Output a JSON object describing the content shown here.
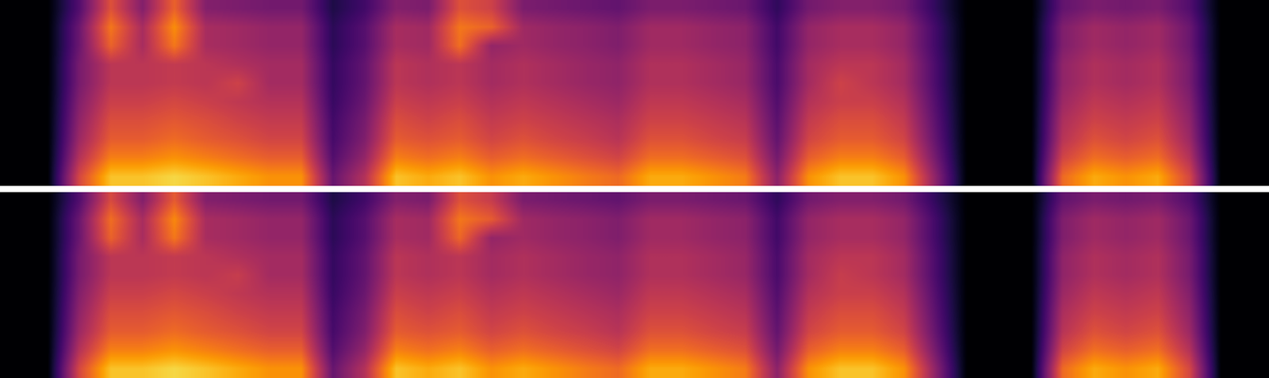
{
  "chart_data": [
    {
      "type": "heatmap",
      "color": "inferno",
      "tick_labels": false,
      "value_range": [
        0,
        1
      ],
      "cells": [
        [
          0,
          0,
          0.24,
          0.6,
          0.36,
          0.65,
          0.36,
          0.34,
          0.32,
          0.32,
          0.12,
          0.2,
          0.36,
          0.34,
          0.6,
          0.55,
          0.34,
          0.32,
          0.3,
          0.28,
          0.34,
          0.34,
          0.32,
          0.3,
          0.16,
          0.32,
          0.36,
          0.36,
          0.32,
          0.16,
          0,
          0,
          0,
          0.28,
          0.34,
          0.32,
          0.34,
          0.24,
          0,
          0
        ],
        [
          0,
          0,
          0.3,
          0.7,
          0.45,
          0.75,
          0.45,
          0.43,
          0.4,
          0.4,
          0.15,
          0.25,
          0.45,
          0.43,
          0.7,
          0.65,
          0.43,
          0.4,
          0.38,
          0.35,
          0.43,
          0.43,
          0.4,
          0.38,
          0.2,
          0.4,
          0.45,
          0.45,
          0.4,
          0.2,
          0,
          0,
          0,
          0.35,
          0.43,
          0.4,
          0.43,
          0.3,
          0,
          0
        ],
        [
          0,
          0,
          0.3,
          0.65,
          0.45,
          0.7,
          0.45,
          0.43,
          0.4,
          0.4,
          0.15,
          0.25,
          0.45,
          0.43,
          0.68,
          0.4,
          0.43,
          0.4,
          0.38,
          0.35,
          0.43,
          0.43,
          0.4,
          0.38,
          0.2,
          0.4,
          0.45,
          0.45,
          0.4,
          0.2,
          0,
          0,
          0,
          0.35,
          0.43,
          0.4,
          0.43,
          0.3,
          0,
          0
        ],
        [
          0,
          0,
          0.33,
          0.5,
          0.5,
          0.52,
          0.5,
          0.47,
          0.44,
          0.44,
          0.17,
          0.28,
          0.5,
          0.47,
          0.5,
          0.44,
          0.47,
          0.44,
          0.41,
          0.39,
          0.47,
          0.47,
          0.44,
          0.41,
          0.22,
          0.44,
          0.5,
          0.5,
          0.44,
          0.22,
          0,
          0,
          0,
          0.39,
          0.47,
          0.44,
          0.47,
          0.33,
          0,
          0
        ],
        [
          0,
          0,
          0.33,
          0.5,
          0.5,
          0.52,
          0.5,
          0.55,
          0.44,
          0.44,
          0.17,
          0.28,
          0.5,
          0.47,
          0.5,
          0.44,
          0.47,
          0.44,
          0.41,
          0.39,
          0.47,
          0.47,
          0.44,
          0.41,
          0.22,
          0.44,
          0.55,
          0.5,
          0.44,
          0.22,
          0,
          0,
          0,
          0.39,
          0.47,
          0.44,
          0.47,
          0.33,
          0,
          0
        ],
        [
          0,
          0,
          0.36,
          0.54,
          0.54,
          0.57,
          0.54,
          0.51,
          0.48,
          0.48,
          0.18,
          0.3,
          0.54,
          0.51,
          0.54,
          0.48,
          0.51,
          0.48,
          0.45,
          0.42,
          0.51,
          0.51,
          0.48,
          0.45,
          0.24,
          0.48,
          0.54,
          0.54,
          0.48,
          0.24,
          0,
          0,
          0,
          0.42,
          0.51,
          0.48,
          0.51,
          0.36,
          0,
          0
        ],
        [
          0,
          0,
          0.39,
          0.59,
          0.59,
          0.62,
          0.59,
          0.55,
          0.52,
          0.52,
          0.2,
          0.33,
          0.59,
          0.55,
          0.59,
          0.52,
          0.55,
          0.52,
          0.49,
          0.46,
          0.55,
          0.55,
          0.52,
          0.49,
          0.26,
          0.52,
          0.59,
          0.59,
          0.52,
          0.26,
          0,
          0,
          0,
          0.46,
          0.55,
          0.52,
          0.55,
          0.39,
          0,
          0
        ],
        [
          0,
          0,
          0.42,
          0.63,
          0.63,
          0.67,
          0.63,
          0.6,
          0.56,
          0.56,
          0.21,
          0.35,
          0.63,
          0.6,
          0.63,
          0.56,
          0.6,
          0.56,
          0.53,
          0.49,
          0.6,
          0.6,
          0.56,
          0.53,
          0.28,
          0.56,
          0.63,
          0.63,
          0.56,
          0.28,
          0,
          0,
          0,
          0.49,
          0.6,
          0.56,
          0.6,
          0.42,
          0,
          0
        ],
        [
          0,
          0,
          0.48,
          0.72,
          0.72,
          0.76,
          0.72,
          0.68,
          0.64,
          0.64,
          0.24,
          0.4,
          0.72,
          0.68,
          0.72,
          0.64,
          0.68,
          0.64,
          0.6,
          0.56,
          0.68,
          0.68,
          0.64,
          0.6,
          0.32,
          0.64,
          0.72,
          0.72,
          0.64,
          0.32,
          0,
          0,
          0,
          0.56,
          0.68,
          0.64,
          0.68,
          0.48,
          0,
          0
        ],
        [
          0,
          0,
          0.57,
          0.86,
          0.86,
          0.9,
          0.86,
          0.81,
          0.76,
          0.76,
          0.29,
          0.48,
          0.86,
          0.81,
          0.86,
          0.76,
          0.81,
          0.76,
          0.71,
          0.67,
          0.81,
          0.81,
          0.76,
          0.71,
          0.38,
          0.76,
          0.86,
          0.86,
          0.76,
          0.38,
          0,
          0,
          0,
          0.67,
          0.81,
          0.76,
          0.81,
          0.57,
          0,
          0
        ]
      ]
    },
    {
      "type": "heatmap",
      "color": "inferno",
      "tick_labels": false,
      "value_range": [
        0,
        1
      ],
      "cells": [
        [
          0,
          0,
          0.24,
          0.58,
          0.36,
          0.63,
          0.36,
          0.34,
          0.32,
          0.32,
          0.12,
          0.2,
          0.36,
          0.34,
          0.6,
          0.53,
          0.34,
          0.32,
          0.3,
          0.28,
          0.34,
          0.34,
          0.32,
          0.3,
          0.16,
          0.32,
          0.36,
          0.36,
          0.32,
          0.16,
          0,
          0,
          0,
          0.28,
          0.34,
          0.32,
          0.34,
          0.24,
          0,
          0
        ],
        [
          0,
          0,
          0.3,
          0.68,
          0.45,
          0.74,
          0.45,
          0.43,
          0.4,
          0.4,
          0.15,
          0.25,
          0.45,
          0.43,
          0.7,
          0.63,
          0.43,
          0.4,
          0.38,
          0.35,
          0.43,
          0.43,
          0.4,
          0.38,
          0.2,
          0.4,
          0.45,
          0.45,
          0.4,
          0.2,
          0,
          0,
          0,
          0.35,
          0.43,
          0.4,
          0.43,
          0.3,
          0,
          0
        ],
        [
          0,
          0,
          0.3,
          0.65,
          0.45,
          0.7,
          0.45,
          0.43,
          0.4,
          0.4,
          0.15,
          0.25,
          0.45,
          0.43,
          0.66,
          0.4,
          0.43,
          0.4,
          0.38,
          0.35,
          0.43,
          0.43,
          0.4,
          0.38,
          0.2,
          0.4,
          0.45,
          0.45,
          0.4,
          0.2,
          0,
          0,
          0,
          0.35,
          0.43,
          0.4,
          0.43,
          0.3,
          0,
          0
        ],
        [
          0,
          0,
          0.33,
          0.5,
          0.5,
          0.52,
          0.5,
          0.47,
          0.44,
          0.44,
          0.17,
          0.28,
          0.5,
          0.47,
          0.5,
          0.44,
          0.47,
          0.44,
          0.41,
          0.39,
          0.47,
          0.47,
          0.44,
          0.41,
          0.22,
          0.44,
          0.5,
          0.5,
          0.44,
          0.22,
          0,
          0,
          0,
          0.39,
          0.47,
          0.44,
          0.47,
          0.33,
          0,
          0
        ],
        [
          0,
          0,
          0.33,
          0.5,
          0.5,
          0.52,
          0.5,
          0.53,
          0.44,
          0.44,
          0.17,
          0.28,
          0.5,
          0.47,
          0.5,
          0.44,
          0.47,
          0.44,
          0.41,
          0.39,
          0.47,
          0.47,
          0.44,
          0.41,
          0.22,
          0.44,
          0.53,
          0.5,
          0.44,
          0.22,
          0,
          0,
          0,
          0.39,
          0.47,
          0.44,
          0.47,
          0.33,
          0,
          0
        ],
        [
          0,
          0,
          0.36,
          0.54,
          0.54,
          0.57,
          0.54,
          0.51,
          0.48,
          0.48,
          0.18,
          0.3,
          0.54,
          0.51,
          0.54,
          0.48,
          0.51,
          0.48,
          0.45,
          0.42,
          0.51,
          0.51,
          0.48,
          0.45,
          0.24,
          0.48,
          0.54,
          0.54,
          0.48,
          0.24,
          0,
          0,
          0,
          0.42,
          0.51,
          0.48,
          0.51,
          0.36,
          0,
          0
        ],
        [
          0,
          0,
          0.39,
          0.59,
          0.59,
          0.62,
          0.59,
          0.55,
          0.52,
          0.52,
          0.2,
          0.33,
          0.59,
          0.55,
          0.59,
          0.52,
          0.55,
          0.52,
          0.49,
          0.46,
          0.55,
          0.55,
          0.52,
          0.49,
          0.26,
          0.52,
          0.59,
          0.59,
          0.52,
          0.26,
          0,
          0,
          0,
          0.46,
          0.55,
          0.52,
          0.55,
          0.39,
          0,
          0
        ],
        [
          0,
          0,
          0.42,
          0.63,
          0.63,
          0.67,
          0.63,
          0.6,
          0.56,
          0.56,
          0.21,
          0.35,
          0.63,
          0.6,
          0.63,
          0.56,
          0.6,
          0.56,
          0.53,
          0.49,
          0.6,
          0.6,
          0.56,
          0.53,
          0.28,
          0.56,
          0.63,
          0.63,
          0.56,
          0.28,
          0,
          0,
          0,
          0.49,
          0.6,
          0.56,
          0.6,
          0.42,
          0,
          0
        ],
        [
          0,
          0,
          0.48,
          0.72,
          0.72,
          0.76,
          0.72,
          0.68,
          0.64,
          0.64,
          0.24,
          0.4,
          0.72,
          0.68,
          0.72,
          0.64,
          0.68,
          0.64,
          0.6,
          0.56,
          0.68,
          0.68,
          0.64,
          0.6,
          0.32,
          0.64,
          0.72,
          0.72,
          0.64,
          0.32,
          0,
          0,
          0,
          0.56,
          0.68,
          0.64,
          0.68,
          0.48,
          0,
          0
        ],
        [
          0,
          0,
          0.57,
          0.86,
          0.86,
          0.9,
          0.86,
          0.81,
          0.76,
          0.76,
          0.29,
          0.48,
          0.86,
          0.81,
          0.86,
          0.76,
          0.81,
          0.76,
          0.71,
          0.67,
          0.81,
          0.81,
          0.76,
          0.71,
          0.38,
          0.76,
          0.86,
          0.86,
          0.76,
          0.38,
          0,
          0,
          0,
          0.67,
          0.81,
          0.76,
          0.81,
          0.57,
          0,
          0
        ]
      ]
    }
  ]
}
